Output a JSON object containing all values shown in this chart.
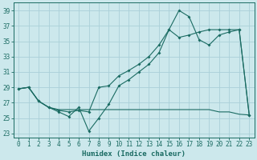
{
  "xlabel": "Humidex (Indice chaleur)",
  "bg_color": "#cce8ec",
  "grid_color": "#aad0d8",
  "line_color": "#1a6b62",
  "xlim": [
    -0.5,
    23.5
  ],
  "ylim": [
    22.5,
    40
  ],
  "yticks": [
    23,
    25,
    27,
    29,
    31,
    33,
    35,
    37,
    39
  ],
  "xticks": [
    0,
    1,
    2,
    3,
    4,
    5,
    6,
    7,
    8,
    9,
    10,
    11,
    12,
    13,
    14,
    15,
    16,
    17,
    18,
    19,
    20,
    21,
    22,
    23
  ],
  "series1_jagged": {
    "x": [
      0,
      1,
      2,
      3,
      4,
      5,
      6,
      7,
      8,
      9,
      10,
      11,
      12,
      13,
      14,
      15,
      16,
      17,
      18,
      19,
      20,
      21,
      22,
      23
    ],
    "y": [
      28.8,
      29.0,
      27.2,
      26.4,
      25.8,
      25.2,
      26.4,
      23.3,
      25.0,
      26.8,
      29.2,
      30.0,
      31.0,
      32.0,
      33.5,
      36.5,
      39.0,
      38.2,
      35.2,
      34.5,
      35.8,
      36.2,
      36.5,
      25.4
    ]
  },
  "series2_flat": {
    "x": [
      0,
      1,
      2,
      3,
      4,
      5,
      6,
      7,
      8,
      9,
      10,
      11,
      12,
      13,
      14,
      15,
      16,
      17,
      18,
      19,
      20,
      21,
      22,
      23
    ],
    "y": [
      28.8,
      29.0,
      27.2,
      26.4,
      26.1,
      26.1,
      26.1,
      26.1,
      26.1,
      26.1,
      26.1,
      26.1,
      26.1,
      26.1,
      26.1,
      26.1,
      26.1,
      26.1,
      26.1,
      26.1,
      25.8,
      25.8,
      25.5,
      25.4
    ]
  },
  "series3_diagonal": {
    "x": [
      0,
      1,
      2,
      3,
      4,
      5,
      6,
      7,
      8,
      9,
      10,
      11,
      12,
      13,
      14,
      15,
      16,
      17,
      18,
      19,
      20,
      21,
      22,
      23
    ],
    "y": [
      28.8,
      29.0,
      27.2,
      26.4,
      26.0,
      25.8,
      26.0,
      25.8,
      29.0,
      29.2,
      30.5,
      31.2,
      32.0,
      33.0,
      34.5,
      36.5,
      35.5,
      35.8,
      36.2,
      36.5,
      36.5,
      36.5,
      36.5,
      25.4
    ]
  }
}
